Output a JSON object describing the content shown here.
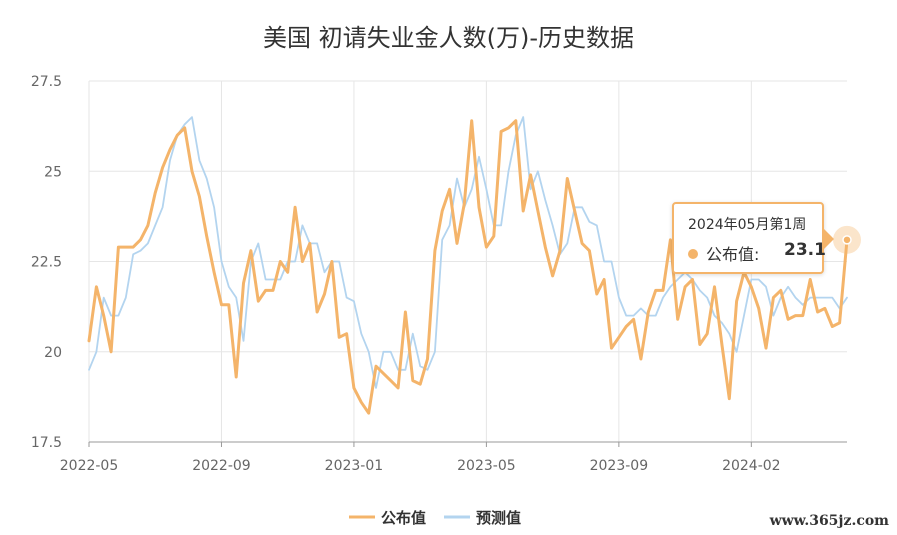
{
  "title": "美国 初请失业金人数(万)-历史数据",
  "watermark": "www.365jz.com",
  "tooltip": {
    "date": "2024年05月第1周",
    "series": "公布值:",
    "value": "23.1"
  },
  "chart_data": {
    "type": "line",
    "title": "美国 初请失业金人数(万)-历史数据",
    "xlabel": "",
    "ylabel": "",
    "ylim": [
      17.5,
      27.5
    ],
    "yticks": [
      "17.5",
      "20",
      "22.5",
      "25",
      "27.5"
    ],
    "xticks": [
      {
        "label": "2022-05",
        "index": 0
      },
      {
        "label": "2022-09",
        "index": 18
      },
      {
        "label": "2023-01",
        "index": 36
      },
      {
        "label": "2023-05",
        "index": 54
      },
      {
        "label": "2023-09",
        "index": 72
      },
      {
        "label": "2024-02",
        "index": 90
      }
    ],
    "grid": true,
    "legend": "bottom-center",
    "series": [
      {
        "name": "公布值",
        "color": "#f4b46a",
        "values": [
          20.3,
          21.8,
          21.0,
          20.0,
          22.9,
          22.9,
          22.9,
          23.1,
          23.5,
          24.4,
          25.1,
          25.6,
          26.0,
          26.2,
          25.0,
          24.3,
          23.2,
          22.2,
          21.3,
          21.3,
          19.3,
          21.9,
          22.8,
          21.4,
          21.7,
          21.7,
          22.5,
          22.2,
          24.0,
          22.5,
          23.0,
          21.1,
          21.6,
          22.5,
          20.4,
          20.5,
          19.0,
          18.6,
          18.3,
          19.6,
          19.4,
          19.2,
          19.0,
          21.1,
          19.2,
          19.1,
          19.8,
          22.8,
          23.9,
          24.5,
          23.0,
          24.1,
          26.4,
          24.0,
          22.9,
          23.2,
          26.1,
          26.2,
          26.4,
          23.9,
          24.9,
          23.9,
          22.9,
          22.1,
          22.8,
          24.8,
          23.9,
          23.0,
          22.8,
          21.6,
          22.0,
          20.1,
          20.4,
          20.7,
          20.9,
          19.8,
          21.1,
          21.7,
          21.7,
          23.1,
          20.9,
          21.8,
          22.0,
          20.2,
          20.5,
          21.8,
          20.2,
          18.7,
          21.4,
          22.2,
          21.8,
          21.2,
          20.1,
          21.5,
          21.7,
          20.9,
          21.0,
          21.0,
          22.0,
          21.1,
          21.2,
          20.7,
          20.8,
          23.1
        ]
      },
      {
        "name": "预测值",
        "color": "#b3d4ef",
        "values": [
          19.5,
          20.0,
          21.5,
          21.0,
          21.0,
          21.5,
          22.7,
          22.8,
          23.0,
          23.5,
          24.0,
          25.3,
          26.0,
          26.3,
          26.5,
          25.3,
          24.8,
          24.0,
          22.5,
          21.8,
          21.5,
          20.3,
          22.5,
          23.0,
          22.0,
          22.0,
          22.0,
          22.5,
          22.5,
          23.5,
          23.0,
          23.0,
          22.2,
          22.5,
          22.5,
          21.5,
          21.4,
          20.5,
          20.0,
          19.0,
          20.0,
          20.0,
          19.5,
          19.5,
          20.5,
          19.6,
          19.5,
          20.0,
          23.1,
          23.5,
          24.8,
          24.0,
          24.5,
          25.4,
          24.5,
          23.5,
          23.5,
          25.0,
          26.0,
          26.5,
          24.5,
          25.0,
          24.2,
          23.5,
          22.7,
          23.0,
          24.0,
          24.0,
          23.6,
          23.5,
          22.5,
          22.5,
          21.5,
          21.0,
          21.0,
          21.2,
          21.0,
          21.0,
          21.5,
          21.8,
          22.0,
          22.2,
          22.0,
          21.7,
          21.5,
          21.0,
          20.8,
          20.5,
          20.0,
          21.0,
          22.0,
          22.0,
          21.8,
          21.0,
          21.5,
          21.8,
          21.5,
          21.3,
          21.5,
          21.5,
          21.5,
          21.5,
          21.2,
          21.5
        ]
      }
    ]
  }
}
